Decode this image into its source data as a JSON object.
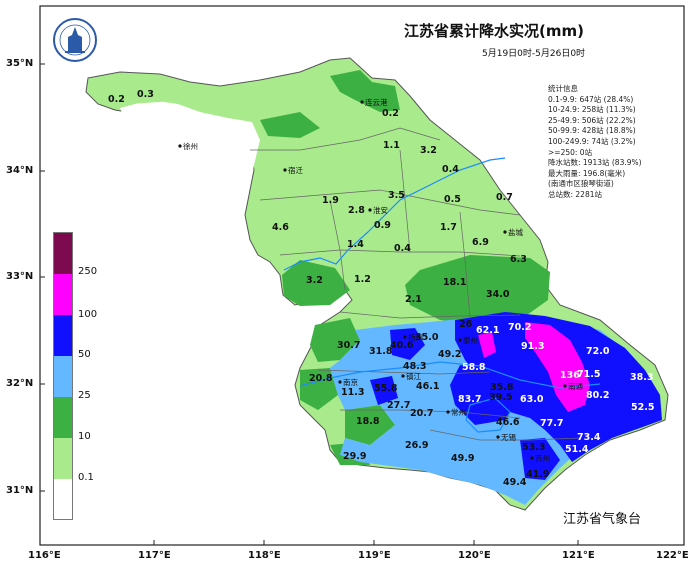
{
  "title": "江苏省累计降水实况(mm)",
  "period": "5月19日0时-5月26日0时",
  "agency": "江苏省气象台",
  "stats": {
    "heading": "统计信息",
    "lines": [
      "0.1-9.9: 647站 (28.4%)",
      "10-24.9: 258站 (11.3%)",
      "25-49.9: 506站 (22.2%)",
      "50-99.9: 428站 (18.8%)",
      "100-249.9: 74站 (3.2%)",
      ">=250: 0站",
      "降水站数: 1913站 (83.9%)",
      "最大雨量: 196.8(毫米)",
      "(南通市区狼琴街道)",
      "总站数: 2281站"
    ]
  },
  "lat_labels": [
    "35°N",
    "34°N",
    "33°N",
    "32°N",
    "31°N"
  ],
  "lon_labels": [
    "116°E",
    "117°E",
    "118°E",
    "119°E",
    "120°E",
    "121°E",
    "122°E"
  ],
  "legend": {
    "labels": [
      "250",
      "100",
      "50",
      "25",
      "10",
      "0.1"
    ],
    "colors": [
      "#7d0a4f",
      "#ff00ff",
      "#1010ff",
      "#63b8ff",
      "#3cb043",
      "#a8ea8c",
      "#ffffff"
    ]
  },
  "cities": [
    "徐州",
    "宿迁",
    "连云港",
    "淮安",
    "盐城",
    "扬州",
    "泰州",
    "南京",
    "镇江",
    "常州",
    "无锡",
    "南通",
    "苏州"
  ],
  "values": [
    "0.2",
    "0.3",
    "0.2",
    "1.1",
    "3.2",
    "0.4",
    "0.7",
    "1.9",
    "2.8",
    "3.5",
    "0.9",
    "0.5",
    "4.6",
    "1.4",
    "0.4",
    "1.7",
    "6.9",
    "6.3",
    "3.2",
    "1.2",
    "2.1",
    "18.1",
    "34.0",
    "26",
    "62.1",
    "70.2",
    "30.7",
    "31.8",
    "40.6",
    "35.0",
    "91.3",
    "72.0",
    "48.3",
    "49.2",
    "58.8",
    "20.8",
    "11.3",
    "55.8",
    "46.1",
    "136",
    "71.5",
    "38.3",
    "27.7",
    "35.8",
    "39.5",
    "63.0",
    "80.2",
    "52.5",
    "18.8",
    "20.7",
    "83.7",
    "46.6",
    "77.7",
    "73.4",
    "26.9",
    "53.3",
    "51.4",
    "29.9",
    "49.9",
    "41.9",
    "49.4"
  ]
}
